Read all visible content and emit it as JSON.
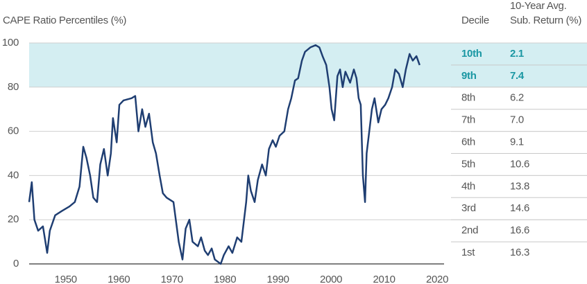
{
  "chart_data": {
    "type": "line",
    "title": "CAPE Ratio Percentiles (%)",
    "xlim": [
      1943.1,
      2021.3
    ],
    "xticks": [
      1950,
      1960,
      1970,
      1980,
      1990,
      2000,
      2010,
      2020
    ],
    "ylim": [
      0,
      100
    ],
    "yticks": [
      0,
      20,
      40,
      60,
      80,
      100
    ],
    "grid": true,
    "band": {
      "range": [
        80,
        100
      ],
      "color": "#d4eef2"
    },
    "series": [
      {
        "name": "CAPE Ratio Percentile",
        "color": "#1f3e72",
        "x": [
          1943.1,
          1943.6,
          1944.1,
          1944.8,
          1945.7,
          1946.5,
          1947.0,
          1948.0,
          1949.3,
          1950.7,
          1951.7,
          1952.6,
          1953.3,
          1953.9,
          1954.6,
          1955.2,
          1955.9,
          1956.5,
          1957.2,
          1957.9,
          1958.5,
          1958.9,
          1959.6,
          1960.1,
          1960.9,
          1962.4,
          1963.1,
          1963.7,
          1964.4,
          1965.0,
          1965.7,
          1966.4,
          1967.0,
          1967.7,
          1968.3,
          1969.0,
          1970.3,
          1971.3,
          1972.0,
          1972.6,
          1973.3,
          1973.9,
          1974.9,
          1975.5,
          1976.2,
          1976.8,
          1977.5,
          1978.1,
          1979.2,
          1979.8,
          1980.7,
          1981.4,
          1982.3,
          1983.1,
          1984.0,
          1984.4,
          1984.9,
          1985.6,
          1986.2,
          1987.0,
          1987.7,
          1988.3,
          1989.0,
          1989.6,
          1990.3,
          1991.2,
          1991.9,
          1992.5,
          1993.2,
          1993.8,
          1994.5,
          1995.1,
          1996.1,
          1997.1,
          1997.8,
          1998.4,
          1999.1,
          1999.7,
          2000.1,
          2000.6,
          2001.2,
          2001.7,
          2002.2,
          2002.7,
          2003.6,
          2004.3,
          2004.8,
          2005.2,
          2005.6,
          2006.0,
          2006.4,
          2006.7,
          2007.2,
          2007.7,
          2008.2,
          2008.9,
          2009.5,
          2010.2,
          2010.8,
          2011.5,
          2012.1,
          2012.8,
          2013.5,
          2014.1,
          2014.8,
          2015.4,
          2016.1,
          2016.7
        ],
        "values": [
          28,
          37,
          20,
          15,
          17,
          5,
          15,
          22,
          24,
          26,
          28,
          35,
          53,
          48,
          40,
          30,
          28,
          45,
          52,
          40,
          50,
          66,
          55,
          72,
          74,
          75,
          76,
          60,
          70,
          62,
          68,
          55,
          50,
          40,
          32,
          30,
          28,
          10,
          2,
          16,
          20,
          10,
          8,
          12,
          6,
          4,
          7,
          2,
          0,
          4,
          8,
          5,
          12,
          10,
          28,
          40,
          33,
          28,
          38,
          45,
          40,
          52,
          56,
          53,
          58,
          60,
          70,
          75,
          83,
          84,
          92,
          96,
          98,
          99,
          98,
          94,
          90,
          80,
          70,
          65,
          85,
          88,
          80,
          87,
          82,
          88,
          84,
          75,
          72,
          40,
          28,
          50,
          60,
          70,
          75,
          64,
          70,
          72,
          75,
          80,
          88,
          86,
          80,
          88,
          95,
          92,
          94,
          90
        ]
      }
    ],
    "table": {
      "decile_header": "Decile",
      "return_header": [
        "10-Year Avg.",
        "Sub. Return (%)"
      ],
      "highlight_color": "#1a97a3",
      "rows": [
        {
          "decile": "10th",
          "return": "2.1",
          "range": [
            90,
            100
          ],
          "highlight": true
        },
        {
          "decile": "9th",
          "return": "7.4",
          "range": [
            80,
            90
          ],
          "highlight": true
        },
        {
          "decile": "8th",
          "return": "6.2",
          "range": [
            70,
            80
          ],
          "highlight": false
        },
        {
          "decile": "7th",
          "return": "7.0",
          "range": [
            60,
            70
          ],
          "highlight": false
        },
        {
          "decile": "6th",
          "return": "9.1",
          "range": [
            50,
            60
          ],
          "highlight": false
        },
        {
          "decile": "5th",
          "return": "10.6",
          "range": [
            40,
            50
          ],
          "highlight": false
        },
        {
          "decile": "4th",
          "return": "13.8",
          "range": [
            30,
            40
          ],
          "highlight": false
        },
        {
          "decile": "3rd",
          "return": "14.6",
          "range": [
            20,
            30
          ],
          "highlight": false
        },
        {
          "decile": "2nd",
          "return": "16.6",
          "range": [
            10,
            20
          ],
          "highlight": false
        },
        {
          "decile": "1st",
          "return": "16.3",
          "range": [
            0,
            10
          ],
          "highlight": false
        }
      ]
    }
  }
}
